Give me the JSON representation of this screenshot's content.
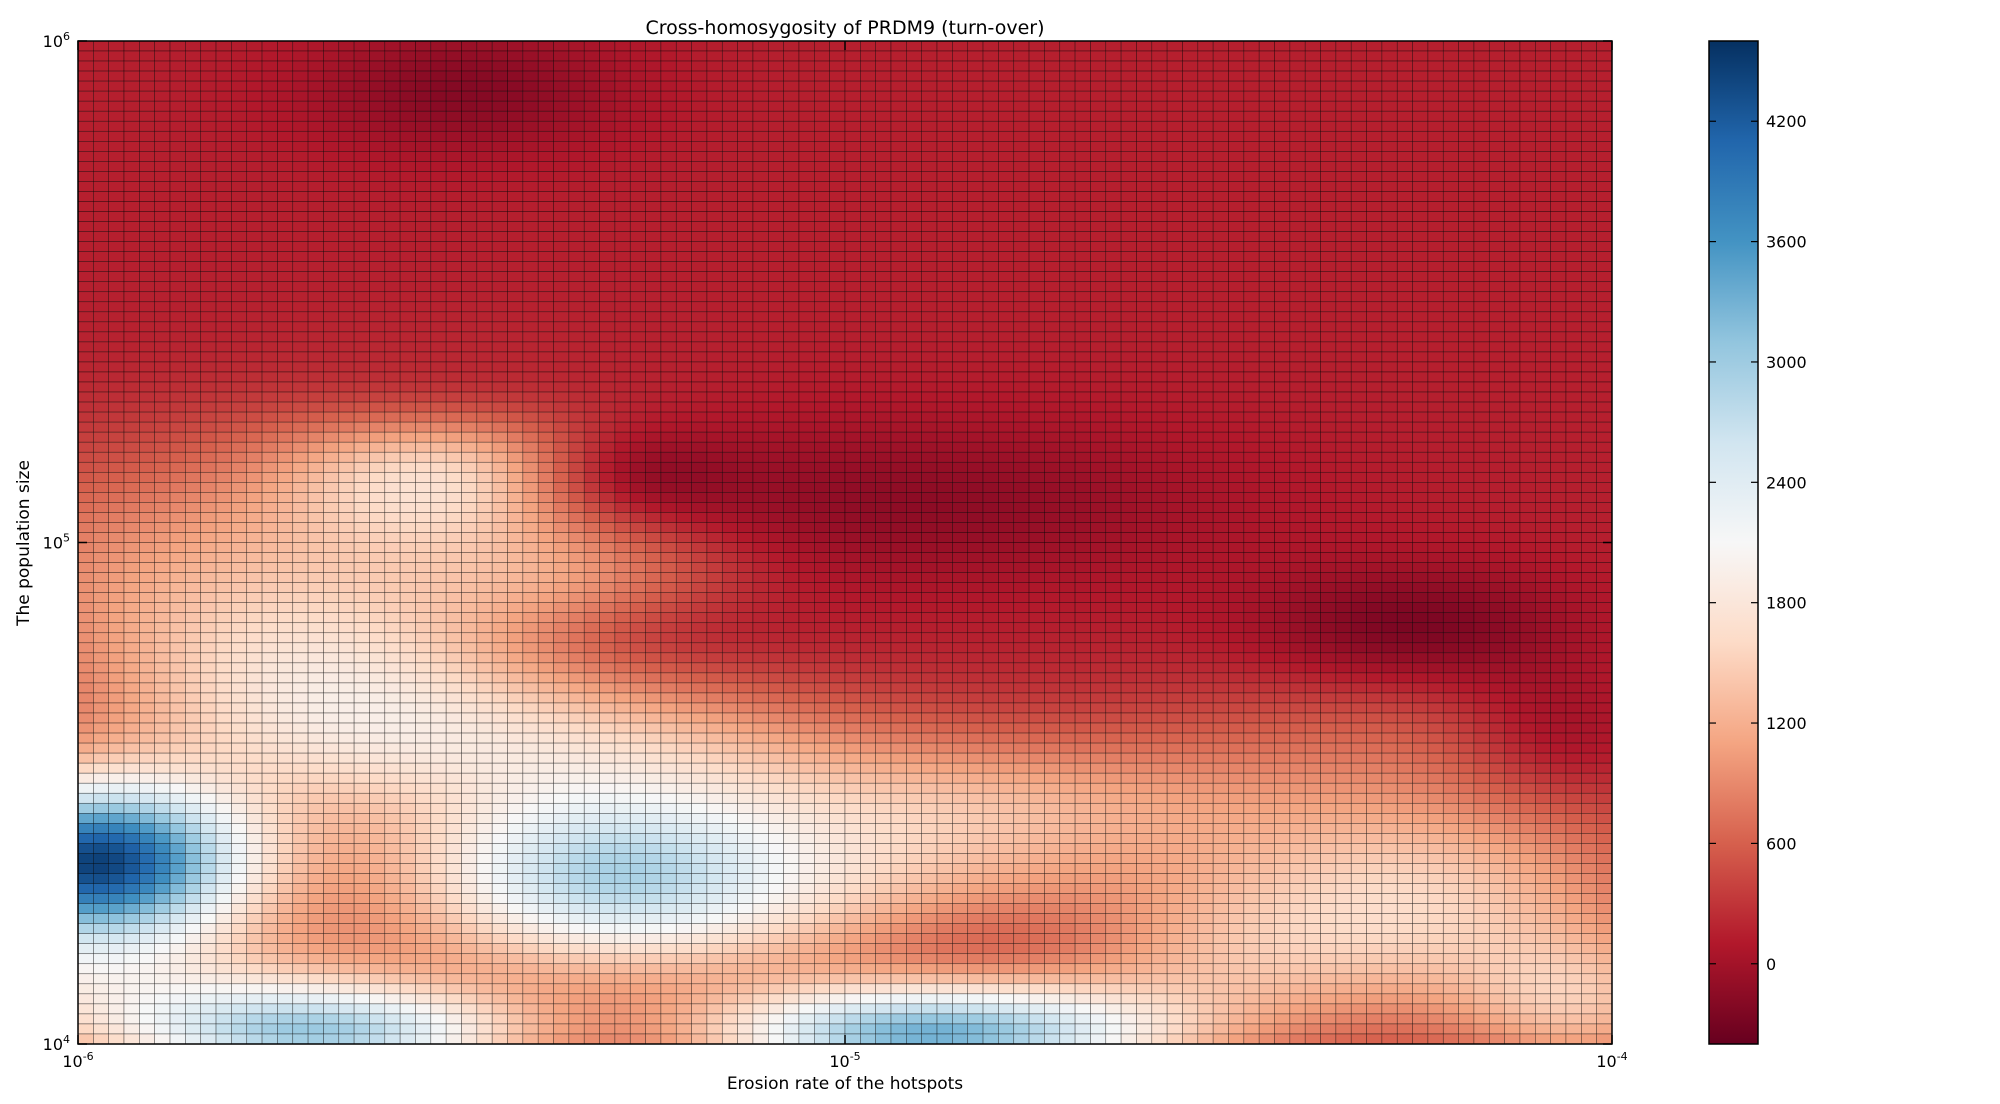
{
  "chart_data": {
    "type": "heatmap",
    "title": "Cross-homosygosity of PRDM9 (turn-over)",
    "xlabel": "Erosion rate of the hotspots",
    "ylabel": "The population size",
    "x_scale": "log",
    "y_scale": "log",
    "xlim": [
      1e-06,
      0.0001
    ],
    "ylim": [
      10000,
      1000000
    ],
    "x_ticks": [
      {
        "base": "10",
        "exp": "-6"
      },
      {
        "base": "10",
        "exp": "-5"
      },
      {
        "base": "10",
        "exp": "-4"
      }
    ],
    "y_ticks": [
      {
        "base": "10",
        "exp": "4"
      },
      {
        "base": "10",
        "exp": "5"
      },
      {
        "base": "10",
        "exp": "6"
      }
    ],
    "grid_resolution": {
      "columns": 100,
      "rows": 100
    },
    "colormap": "RdBu",
    "colormap_stops": [
      "#67001f",
      "#b2182b",
      "#d6604d",
      "#f4a582",
      "#fddbc7",
      "#f7f7f7",
      "#d1e5f0",
      "#92c5de",
      "#4393c3",
      "#2166ac",
      "#053061"
    ],
    "colorbar": {
      "vmin": -400,
      "vmax": 4600,
      "ticks": [
        "0",
        "600",
        "1200",
        "1800",
        "2400",
        "3000",
        "3600",
        "4200"
      ]
    },
    "background_level": 150,
    "features": [
      {
        "x": 1.05e-06,
        "y": 23000,
        "value": 4300,
        "x_spread": 0.1,
        "y_spread": 0.08
      },
      {
        "x": 2.1e-06,
        "y": 10400,
        "value": 2600,
        "x_spread": 0.13,
        "y_spread": 0.05
      },
      {
        "x": 4.7e-06,
        "y": 22000,
        "value": 1950,
        "x_spread": 0.12,
        "y_spread": 0.09
      },
      {
        "x": 1.1e-05,
        "y": 10400,
        "value": 2400,
        "x_spread": 0.12,
        "y_spread": 0.05
      },
      {
        "x": 1.8e-05,
        "y": 10400,
        "value": 1500,
        "x_spread": 0.12,
        "y_spread": 0.05
      },
      {
        "x": 3e-06,
        "y": 140000,
        "value": 1500,
        "x_spread": 0.11,
        "y_spread": 0.08
      },
      {
        "x": 2.1e-06,
        "y": 48000,
        "value": 1550,
        "x_spread": 0.15,
        "y_spread": 0.12
      },
      {
        "x": 1.5e-06,
        "y": 90000,
        "value": 900,
        "x_spread": 0.2,
        "y_spread": 0.12
      },
      {
        "x": 5e-06,
        "y": 40000,
        "value": 1000,
        "x_spread": 0.17,
        "y_spread": 0.07
      },
      {
        "x": 4.5e-06,
        "y": 80000,
        "value": 800,
        "x_spread": 0.1,
        "y_spread": 0.07
      },
      {
        "x": 8e-06,
        "y": 20000,
        "value": 1300,
        "x_spread": 0.2,
        "y_spread": 0.09
      },
      {
        "x": 1.5e-05,
        "y": 30000,
        "value": 1000,
        "x_spread": 0.2,
        "y_spread": 0.07
      },
      {
        "x": 5.5e-05,
        "y": 20000,
        "value": 1400,
        "x_spread": 0.15,
        "y_spread": 0.1
      },
      {
        "x": 3e-05,
        "y": 14000,
        "value": 900,
        "x_spread": 0.15,
        "y_spread": 0.08
      },
      {
        "x": 1e-06,
        "y": 13000,
        "value": 1300,
        "x_spread": 0.2,
        "y_spread": 0.07
      },
      {
        "x": 9e-05,
        "y": 12000,
        "value": 1200,
        "x_spread": 0.08,
        "y_spread": 0.07
      },
      {
        "x": 5.5e-05,
        "y": 40000,
        "value": 500,
        "x_spread": 0.2,
        "y_spread": 0.08
      },
      {
        "x": 3e-06,
        "y": 185000,
        "value": -300,
        "x_spread": 0.1,
        "y_spread": 0.05
      },
      {
        "x": 5e-06,
        "y": 135000,
        "value": -400,
        "x_spread": 0.07,
        "y_spread": 0.05
      },
      {
        "x": 5e-06,
        "y": 67000,
        "value": -250,
        "x_spread": 0.1,
        "y_spread": 0.05
      },
      {
        "x": 5.5e-05,
        "y": 67000,
        "value": -300,
        "x_spread": 0.1,
        "y_spread": 0.06
      },
      {
        "x": 8.5e-05,
        "y": 40000,
        "value": -300,
        "x_spread": 0.07,
        "y_spread": 0.07
      },
      {
        "x": 1.6e-05,
        "y": 16000,
        "value": -250,
        "x_spread": 0.1,
        "y_spread": 0.05
      },
      {
        "x": 3.2e-06,
        "y": 800000,
        "value": -200,
        "x_spread": 0.1,
        "y_spread": 0.06
      },
      {
        "x": 1.2e-05,
        "y": 120000,
        "value": -150,
        "x_spread": 0.2,
        "y_spread": 0.08
      }
    ]
  }
}
